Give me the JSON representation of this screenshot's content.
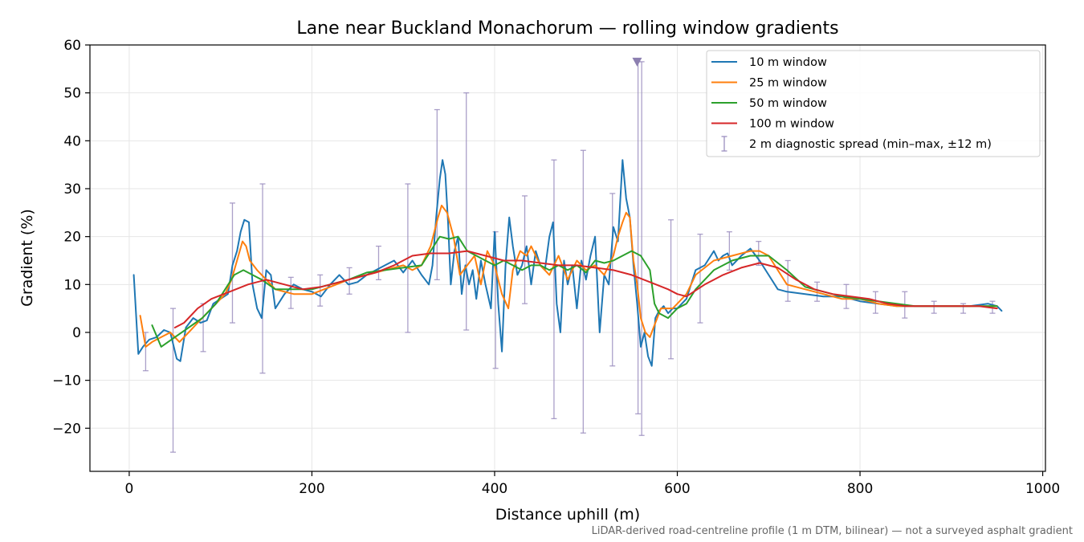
{
  "chart_data": {
    "type": "line",
    "title": "Lane near Buckland Monachorum — rolling window gradients",
    "xlabel": "Distance uphill (m)",
    "ylabel": "Gradient (%)",
    "footnote": "LiDAR-derived road-centreline profile (1 m DTM, bilinear) — not a surveyed asphalt gradient",
    "xlim": [
      -43,
      1003
    ],
    "ylim": [
      -29,
      60
    ],
    "x_ticks": [
      0,
      200,
      400,
      600,
      800,
      1000
    ],
    "x_tick_labels": [
      "0",
      "200",
      "400",
      "600",
      "800",
      "1000"
    ],
    "y_ticks": [
      -20,
      -10,
      0,
      10,
      20,
      30,
      40,
      50,
      60
    ],
    "y_tick_labels": [
      "−20",
      "−10",
      "0",
      "10",
      "20",
      "30",
      "40",
      "50",
      "60"
    ],
    "grid": true,
    "legend_position": "upper right",
    "series": [
      {
        "name": "10 m window",
        "color": "#1f77b4",
        "x": [
          5,
          10,
          15,
          22,
          30,
          38,
          45,
          52,
          56,
          62,
          70,
          78,
          85,
          92,
          100,
          108,
          113,
          118,
          122,
          126,
          131,
          135,
          140,
          145,
          150,
          155,
          160,
          170,
          180,
          190,
          200,
          210,
          220,
          230,
          240,
          250,
          260,
          270,
          280,
          290,
          300,
          310,
          320,
          328,
          332,
          336,
          340,
          343,
          346,
          349,
          352,
          356,
          360,
          364,
          368,
          372,
          376,
          380,
          385,
          390,
          396,
          400,
          404,
          408,
          412,
          416,
          420,
          425,
          430,
          435,
          440,
          445,
          450,
          455,
          460,
          464,
          468,
          472,
          476,
          480,
          485,
          490,
          495,
          500,
          505,
          510,
          515,
          520,
          525,
          530,
          535,
          540,
          544,
          548,
          552,
          556,
          560,
          564,
          568,
          572,
          576,
          580,
          585,
          590,
          595,
          600,
          610,
          620,
          630,
          640,
          645,
          650,
          655,
          660,
          670,
          680,
          690,
          700,
          710,
          720,
          740,
          760,
          780,
          800,
          820,
          840,
          860,
          880,
          900,
          920,
          940,
          950,
          955
        ],
        "y": [
          12,
          -4.5,
          -3,
          -1.5,
          -1,
          0.5,
          0,
          -5.5,
          -6,
          1,
          3,
          2,
          2.5,
          6,
          7,
          8,
          14,
          17,
          21,
          23.5,
          23,
          10,
          5,
          3,
          13,
          12,
          5,
          8,
          10,
          9,
          8.5,
          7.5,
          10,
          12,
          10,
          10.5,
          12,
          13,
          14,
          15,
          12.5,
          15,
          12,
          10,
          14,
          24,
          32,
          36,
          33,
          23,
          10,
          17,
          20,
          8,
          14,
          10,
          13,
          7,
          15,
          10,
          5,
          21,
          6,
          -4,
          14,
          24,
          18,
          12,
          14,
          18,
          10,
          17,
          14,
          13,
          20,
          23,
          6,
          0,
          15,
          10,
          14,
          5,
          15,
          11,
          16,
          20,
          0,
          12,
          10,
          22,
          19,
          36,
          28,
          24,
          14,
          6,
          -3,
          0,
          -5,
          -7,
          3,
          4.5,
          5.5,
          4,
          5,
          5,
          7,
          13,
          14,
          17,
          15,
          16,
          16.5,
          14,
          16,
          17.5,
          15,
          12,
          9,
          8.5,
          8,
          7.5,
          7.5,
          6.5,
          6,
          5.5,
          5.5,
          5.5,
          5.5,
          5.5,
          6,
          5.5,
          4.5
        ]
      },
      {
        "name": "25 m window",
        "color": "#ff7f0e",
        "x": [
          12,
          18,
          25,
          35,
          45,
          55,
          65,
          75,
          85,
          95,
          105,
          112,
          118,
          124,
          128,
          132,
          140,
          150,
          160,
          170,
          180,
          200,
          220,
          240,
          260,
          280,
          300,
          310,
          320,
          330,
          338,
          342,
          348,
          355,
          362,
          370,
          378,
          385,
          392,
          400,
          408,
          415,
          420,
          428,
          435,
          440,
          450,
          460,
          470,
          480,
          490,
          500,
          510,
          520,
          530,
          535,
          540,
          544,
          548,
          552,
          556,
          560,
          565,
          570,
          574,
          578,
          582,
          588,
          595,
          600,
          610,
          620,
          640,
          660,
          680,
          690,
          700,
          720,
          740,
          760,
          780,
          800,
          820,
          840,
          860,
          880,
          900,
          920,
          940,
          950
        ],
        "y": [
          3.5,
          -3,
          -2,
          -1,
          0,
          -2,
          0,
          2,
          4,
          6,
          8,
          11,
          15,
          19,
          18,
          15,
          13,
          11,
          9,
          8.5,
          8,
          8,
          9.5,
          11,
          12,
          13,
          14,
          13,
          14,
          18,
          24,
          26.5,
          25,
          20,
          12,
          14,
          16,
          10,
          17,
          14,
          8,
          5,
          13,
          17,
          16,
          18,
          14,
          12,
          16,
          11,
          15,
          13,
          14,
          12,
          16,
          20,
          23,
          25,
          24,
          15,
          10,
          3,
          0,
          -1,
          1,
          3,
          5,
          5,
          5,
          6,
          8,
          12,
          15,
          16,
          17,
          17,
          16,
          10,
          9,
          8,
          7,
          7,
          6,
          5.5,
          5.5,
          5.5,
          5.5,
          5.5,
          5.5,
          5.5
        ]
      },
      {
        "name": "50 m window",
        "color": "#2ca02c",
        "x": [
          25,
          35,
          50,
          65,
          80,
          95,
          105,
          115,
          125,
          135,
          145,
          160,
          180,
          200,
          220,
          240,
          260,
          280,
          300,
          320,
          330,
          340,
          350,
          360,
          370,
          380,
          390,
          400,
          410,
          420,
          430,
          440,
          450,
          460,
          470,
          480,
          490,
          500,
          510,
          520,
          530,
          540,
          550,
          560,
          570,
          575,
          580,
          590,
          600,
          610,
          620,
          640,
          660,
          680,
          700,
          720,
          740,
          760,
          780,
          800,
          820,
          840,
          860,
          880,
          900,
          920,
          940,
          950
        ],
        "y": [
          1.5,
          -3,
          -1,
          1,
          3,
          6,
          9,
          12,
          13,
          12,
          11,
          9,
          9,
          9,
          10,
          11,
          12.5,
          13,
          13.5,
          14,
          17,
          20,
          19.5,
          20,
          17,
          16,
          15,
          14,
          15,
          14,
          13,
          14,
          14,
          13,
          14,
          13,
          14,
          12.5,
          15,
          14.5,
          15,
          16,
          17,
          16,
          13,
          6,
          4,
          3,
          5,
          6,
          9,
          13,
          15,
          16,
          16,
          13,
          9.5,
          8.5,
          7.5,
          7,
          6.5,
          6,
          5.5,
          5.5,
          5.5,
          5.5,
          5.5,
          5.5
        ]
      },
      {
        "name": "100 m window",
        "color": "#d62728",
        "x": [
          50,
          60,
          75,
          90,
          110,
          130,
          150,
          170,
          190,
          210,
          230,
          250,
          270,
          290,
          310,
          330,
          350,
          370,
          390,
          410,
          430,
          450,
          470,
          490,
          510,
          530,
          550,
          570,
          590,
          600,
          610,
          630,
          650,
          670,
          690,
          710,
          730,
          750,
          770,
          790,
          810,
          830,
          850,
          870,
          890,
          910,
          930,
          950
        ],
        "y": [
          1,
          2,
          5,
          7,
          8.5,
          10,
          11,
          10,
          9,
          9.5,
          10.5,
          11.5,
          12.5,
          14,
          16,
          16.5,
          16.5,
          17,
          16,
          15,
          15,
          14.5,
          14,
          14,
          13.5,
          13,
          12,
          10.5,
          9,
          8,
          7.5,
          10,
          12,
          13.5,
          14.5,
          13.5,
          11,
          9,
          8,
          7.5,
          7,
          6,
          5.5,
          5.5,
          5.5,
          5.5,
          5.5,
          5
        ]
      }
    ],
    "errorbars": {
      "name": "2 m diagnostic spread (min–max, ±12 m)",
      "color": "#9c8fbf",
      "points": [
        {
          "x": 18,
          "lo": -8,
          "hi": 0
        },
        {
          "x": 48,
          "lo": -25,
          "hi": 5
        },
        {
          "x": 81,
          "lo": -4,
          "hi": 6
        },
        {
          "x": 113,
          "lo": 2,
          "hi": 27
        },
        {
          "x": 146,
          "lo": -8.5,
          "hi": 31
        },
        {
          "x": 177,
          "lo": 5,
          "hi": 11.5
        },
        {
          "x": 209,
          "lo": 5.5,
          "hi": 12
        },
        {
          "x": 241,
          "lo": 8,
          "hi": 13.5
        },
        {
          "x": 273,
          "lo": 11,
          "hi": 18
        },
        {
          "x": 305,
          "lo": 0,
          "hi": 31
        },
        {
          "x": 337,
          "lo": 11,
          "hi": 46.5
        },
        {
          "x": 369,
          "lo": 0.5,
          "hi": 50
        },
        {
          "x": 401,
          "lo": -7.5,
          "hi": 21
        },
        {
          "x": 433,
          "lo": 6,
          "hi": 28.5
        },
        {
          "x": 465,
          "lo": -18,
          "hi": 36
        },
        {
          "x": 497,
          "lo": -21,
          "hi": 38
        },
        {
          "x": 529,
          "lo": -7,
          "hi": 29
        },
        {
          "x": 557,
          "lo": -17,
          "hi": 56.5
        },
        {
          "x": 561,
          "lo": -21.5,
          "hi": 56.5
        },
        {
          "x": 593,
          "lo": -5.5,
          "hi": 23.5
        },
        {
          "x": 625,
          "lo": 2,
          "hi": 20.5
        },
        {
          "x": 657,
          "lo": 13,
          "hi": 21
        },
        {
          "x": 689,
          "lo": 14,
          "hi": 19
        },
        {
          "x": 721,
          "lo": 6.5,
          "hi": 15
        },
        {
          "x": 753,
          "lo": 6.5,
          "hi": 10.5
        },
        {
          "x": 785,
          "lo": 5,
          "hi": 10
        },
        {
          "x": 817,
          "lo": 4,
          "hi": 8.5
        },
        {
          "x": 849,
          "lo": 3,
          "hi": 8.5
        },
        {
          "x": 881,
          "lo": 4,
          "hi": 6.5
        },
        {
          "x": 913,
          "lo": 4,
          "hi": 6
        },
        {
          "x": 945,
          "lo": 4,
          "hi": 6.5
        }
      ]
    },
    "marker": {
      "x": 556,
      "y": 56.5,
      "shape": "triangle-down",
      "color": "#8c7fb0"
    }
  }
}
